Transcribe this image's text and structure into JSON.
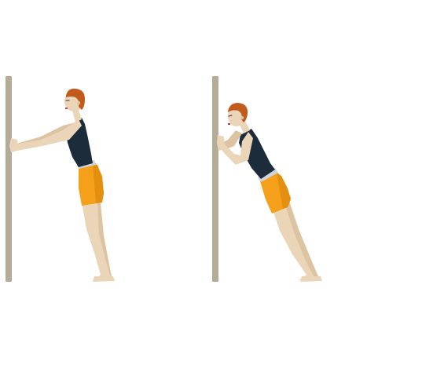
{
  "illustration": {
    "panels": [
      {
        "pose": "arms-extended-lean"
      },
      {
        "pose": "arms-bent-deep-lean"
      }
    ],
    "colors": {
      "wall": "#b5ac98",
      "skin": "#ead5b8",
      "skin_shade": "#dcc3a2",
      "hair": "#c25a1c",
      "top": "#1d2c3b",
      "shorts": "#f4a01a",
      "shorts_shade": "#e48f10",
      "waistband": "#cfd4d8",
      "lips": "#c8344a",
      "eye": "#6b4a3a"
    }
  }
}
